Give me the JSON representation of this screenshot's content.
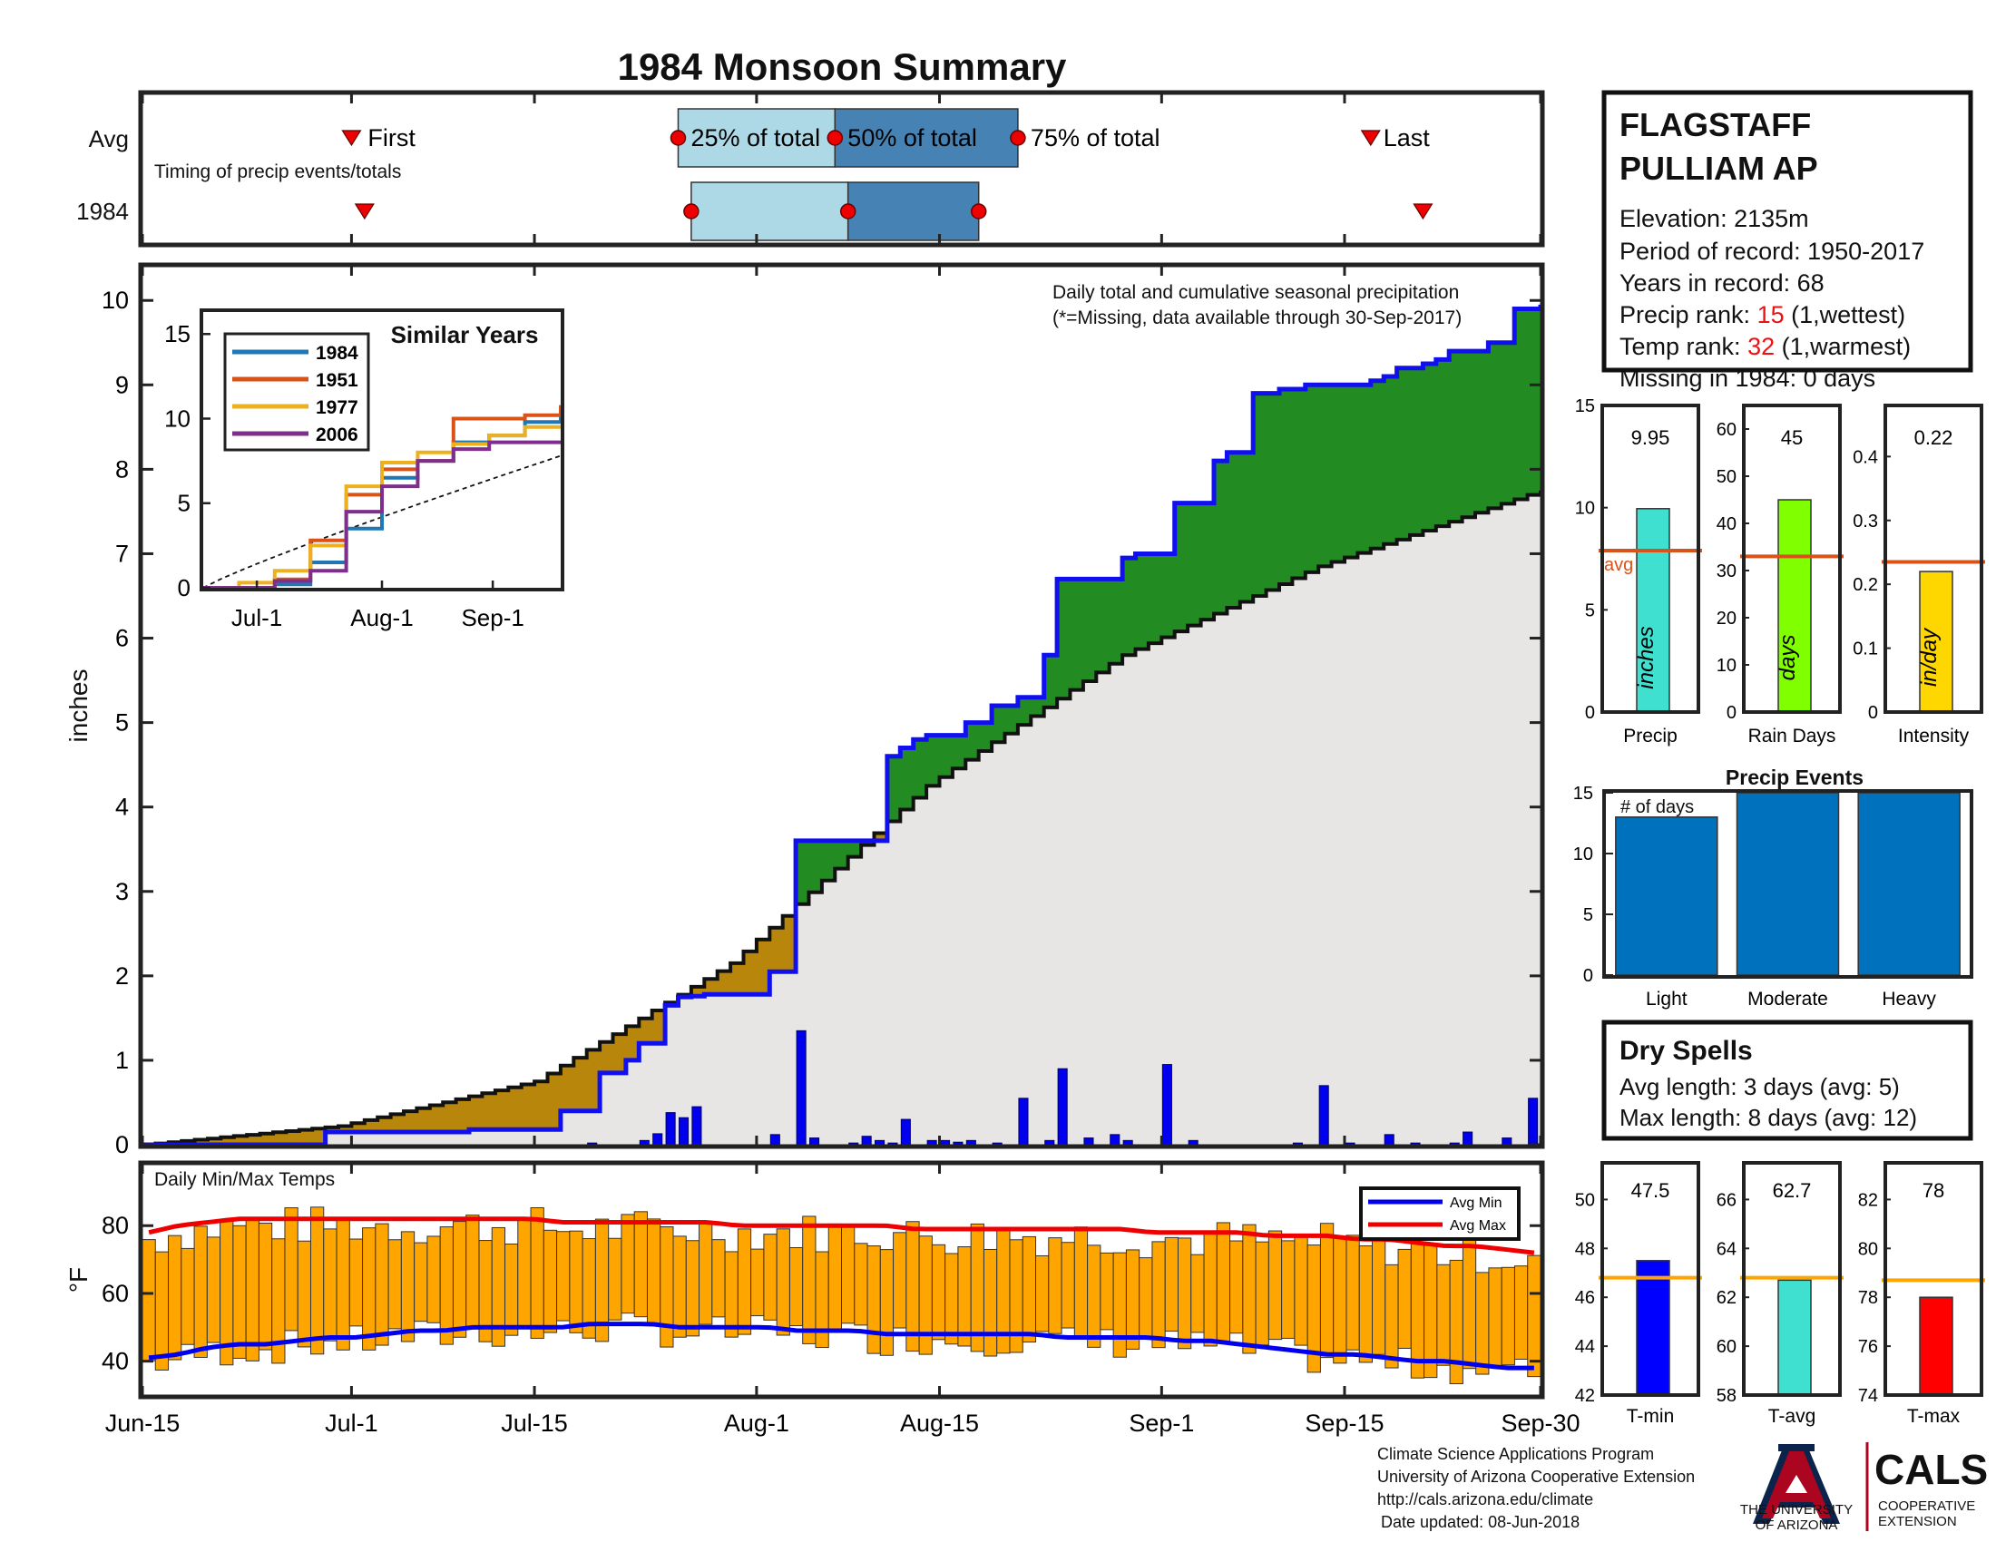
{
  "title": "1984 Monsoon Summary",
  "timing": {
    "row_labels": [
      "Avg",
      "1984"
    ],
    "first_label": "First",
    "last_label": "Last",
    "q25_label": "25% of total",
    "q50_label": "50% of total",
    "q75_label": "75% of total",
    "caption": "Timing of precip events/totals",
    "avg": {
      "first": 16,
      "q25": 41,
      "q50": 53,
      "q75": 67,
      "last": 94
    },
    "year": {
      "first": 17,
      "q25": 42,
      "q50": 54,
      "q75": 64,
      "last": 98
    }
  },
  "station": {
    "name_line1": "FLAGSTAFF",
    "name_line2": "PULLIAM AP",
    "elevation": "Elevation: 2135m",
    "period": "Period of record: 1950-2017",
    "years": "Years in record: 68",
    "precip_rank_prefix": "Precip rank: ",
    "precip_rank_value": "15",
    "precip_rank_suffix": " (1,wettest)",
    "temp_rank_prefix": "Temp rank: ",
    "temp_rank_value": "32",
    "temp_rank_suffix": " (1,warmest)",
    "missing": "Missing in 1984: 0 days"
  },
  "precip_panel": {
    "ylabel": "inches",
    "note_line1": "Daily total and cumulative seasonal precipitation",
    "note_line2": "(*=Missing, data available through 30-Sep-2017)"
  },
  "similar_years": {
    "title": "Similar Years",
    "legend": [
      "1984",
      "1951",
      "1977",
      "2006"
    ],
    "colors": [
      "#1f77b4",
      "#d95319",
      "#edb120",
      "#7e2f8e"
    ],
    "xticks": [
      "Jul-1",
      "Aug-1",
      "Sep-1"
    ],
    "yticks": [
      "0",
      "5",
      "10",
      "15"
    ]
  },
  "temp_panel": {
    "title": "Daily Min/Max Temps",
    "ylabel": "°F",
    "legend_min": "Avg Min",
    "legend_max": "Avg Max",
    "yticks": [
      "40",
      "60",
      "80"
    ]
  },
  "x_ticks": [
    "Jun-15",
    "Jul-1",
    "Jul-15",
    "Aug-1",
    "Aug-15",
    "Sep-1",
    "Sep-15",
    "Sep-30"
  ],
  "summary_bars": [
    {
      "label": "Precip",
      "value": 9.95,
      "value_label": "9.95",
      "avg": 7.9,
      "unit": "inches",
      "color": "#40e0d0",
      "ymax": 15,
      "ticks": [
        "0",
        "5",
        "10",
        "15"
      ]
    },
    {
      "label": "Rain Days",
      "value": 45,
      "value_label": "45",
      "avg": 33,
      "unit": "days",
      "color": "#7fff00",
      "ymax": 65,
      "ticks": [
        "0",
        "10",
        "20",
        "30",
        "40",
        "50",
        "60"
      ]
    },
    {
      "label": "Intensity",
      "value": 0.22,
      "value_label": "0.22",
      "avg": 0.235,
      "unit": "in/day",
      "color": "#ffd700",
      "ymax": 0.48,
      "ticks": [
        "0",
        "0.1",
        "0.2",
        "0.3",
        "0.4"
      ]
    }
  ],
  "avg_label": "avg",
  "events": {
    "title": "Precip Events",
    "ylabel": "# of days",
    "categories": [
      "Light",
      "Moderate",
      "Heavy"
    ],
    "values": [
      13,
      15,
      15
    ],
    "ticks": [
      "0",
      "5",
      "10",
      "15"
    ],
    "color": "#0072bd"
  },
  "dry_spells": {
    "title": "Dry Spells",
    "avg_length": "Avg length: 3 days (avg: 5)",
    "max_length": "Max length: 8 days (avg: 12)"
  },
  "temp_bars": [
    {
      "label": "T-min",
      "value": 47.5,
      "value_label": "47.5",
      "avg": 46.8,
      "color": "#0000ff",
      "ymin": 42,
      "ymax": 51.5,
      "ticks": [
        "42",
        "44",
        "46",
        "48",
        "50"
      ]
    },
    {
      "label": "T-avg",
      "value": 62.7,
      "value_label": "62.7",
      "avg": 62.8,
      "color": "#40e0d0",
      "ymin": 58,
      "ymax": 67.5,
      "ticks": [
        "58",
        "60",
        "62",
        "64",
        "66"
      ]
    },
    {
      "label": "T-max",
      "value": 78,
      "value_label": "78",
      "avg": 78.7,
      "color": "#ff0000",
      "ymin": 74,
      "ymax": 83.5,
      "ticks": [
        "74",
        "76",
        "78",
        "80",
        "82"
      ]
    }
  ],
  "footer": {
    "line1": "Climate Science Applications Program",
    "line2": "University of Arizona Cooperative Extension",
    "line3": "http://cals.arizona.edu/climate",
    "line4": "Date updated: 08-Jun-2018"
  },
  "logo": {
    "ua_line1": "THE UNIVERSITY",
    "ua_line2": "OF ARIZONA",
    "cals": "CALS",
    "coop1": "COOPERATIVE",
    "coop2": "EXTENSION"
  },
  "colors": {
    "title": "#ee1111",
    "green_fill": "#228b22",
    "gold_fill": "#b8860b",
    "gray_fill": "#e8e6e4",
    "cumulative_line": "#1010ee",
    "temp_bar": "#ffa500",
    "avg_line_orange": "#d95319",
    "dry_spell_text": "#8b4513",
    "timing_light": "#add8e6",
    "timing_dark": "#4682b4"
  },
  "chart_data": [
    {
      "type": "area",
      "title": "",
      "ylabel": "inches",
      "xlabel": "",
      "ylim": [
        0,
        10.4
      ],
      "x_range": [
        "Jun-15",
        "Sep-30"
      ],
      "series": [
        {
          "name": "",
          "day_index": [
            0,
            14,
            25,
            32,
            35,
            37,
            38,
            40,
            41,
            42,
            43,
            48,
            50,
            57,
            58,
            59,
            60,
            63,
            65,
            67,
            68,
            69,
            70,
            75,
            76,
            79,
            82,
            83,
            85,
            86,
            87,
            89,
            94,
            95,
            96,
            98,
            99,
            100,
            103,
            105,
            107
          ],
          "values": [
            0,
            0.15,
            0.18,
            0.4,
            0.85,
            1.0,
            1.2,
            1.65,
            1.75,
            1.76,
            1.78,
            2.05,
            3.6,
            4.6,
            4.7,
            4.8,
            4.85,
            5.0,
            5.2,
            5.3,
            5.3,
            5.8,
            6.7,
            6.95,
            7.0,
            7.6,
            8.1,
            8.2,
            8.9,
            8.9,
            8.95,
            9.0,
            9.05,
            9.1,
            9.2,
            9.25,
            9.3,
            9.4,
            9.5,
            9.9,
            9.95
          ]
        },
        {
          "name": "",
          "day_index": [
            0,
            15,
            30,
            45,
            60,
            75,
            90,
            107
          ],
          "values": [
            0,
            0.22,
            0.75,
            2.15,
            4.25,
            5.8,
            6.85,
            7.75
          ]
        }
      ],
      "daily_precip": {
        "day_index": [
          34,
          38,
          39,
          40,
          41,
          42,
          48,
          50,
          51,
          54,
          55,
          56,
          57,
          58,
          60,
          61,
          62,
          63,
          65,
          67,
          69,
          70,
          72,
          74,
          75,
          78,
          80,
          88,
          90,
          92,
          95,
          97,
          100,
          101,
          104,
          106
        ],
        "values": [
          0.02,
          0.05,
          0.13,
          0.38,
          0.32,
          0.45,
          0.12,
          1.35,
          0.08,
          0.02,
          0.1,
          0.05,
          0.02,
          0.3,
          0.05,
          0.05,
          0.03,
          0.05,
          0.02,
          0.55,
          0.05,
          0.9,
          0.08,
          0.12,
          0.05,
          0.95,
          0.05,
          0.02,
          0.7,
          0.02,
          0.12,
          0.02,
          0.02,
          0.15,
          0.08,
          0.55
        ]
      }
    },
    {
      "type": "line",
      "title": "Similar Years",
      "x_ticks": [
        "Jul-1",
        "Aug-1",
        "Sep-1"
      ],
      "ylim": [
        0,
        15
      ],
      "series": [
        {
          "name": "1984",
          "values": [
            0,
            0,
            0.2,
            1.5,
            3.5,
            6.5,
            7.5,
            8.6,
            9.0,
            9.8,
            10.3
          ]
        },
        {
          "name": "1951",
          "values": [
            0,
            0,
            0.5,
            2.8,
            5.5,
            7.0,
            7.5,
            10.0,
            10.0,
            10.2,
            10.8
          ]
        },
        {
          "name": "1977",
          "values": [
            0,
            0.3,
            1.0,
            2.5,
            6.0,
            7.4,
            8.0,
            8.5,
            9.0,
            9.5,
            9.6
          ]
        },
        {
          "name": "2006",
          "values": [
            0,
            0,
            0.4,
            1.0,
            4.5,
            6.0,
            7.5,
            8.2,
            8.6,
            8.6,
            8.6
          ]
        }
      ]
    },
    {
      "type": "bar",
      "title": "Daily Min/Max Temps",
      "ylabel": "°F",
      "ylim": [
        30,
        98
      ],
      "avg_min": [
        41,
        42,
        44,
        45,
        45,
        46,
        47,
        47,
        48,
        49,
        49,
        50,
        50,
        50,
        50,
        51,
        51,
        51,
        50,
        50,
        50,
        50,
        49,
        49,
        49,
        48,
        48,
        48,
        48,
        48,
        48,
        47,
        47,
        47,
        47,
        46,
        46,
        45,
        44,
        43,
        42,
        42,
        41,
        40,
        40,
        39,
        38,
        38
      ],
      "avg_max": [
        78,
        80,
        81,
        82,
        82,
        82,
        82,
        82,
        82,
        82,
        82,
        82,
        82,
        82,
        81,
        81,
        81,
        81,
        81,
        81,
        80,
        80,
        80,
        80,
        80,
        80,
        79,
        79,
        79,
        79,
        79,
        79,
        79,
        79,
        78,
        78,
        78,
        78,
        77,
        77,
        77,
        76,
        76,
        75,
        74,
        74,
        73,
        72
      ]
    },
    {
      "type": "bar",
      "title": "",
      "categories": [
        "Precip",
        "Rain Days",
        "Intensity"
      ],
      "values": [
        9.95,
        45,
        0.22
      ]
    },
    {
      "type": "bar",
      "title": "Precip Events",
      "ylabel": "# of days",
      "categories": [
        "Light",
        "Moderate",
        "Heavy"
      ],
      "values": [
        13,
        15,
        15
      ],
      "ylim": [
        0,
        15
      ]
    },
    {
      "type": "bar",
      "title": "",
      "categories": [
        "T-min",
        "T-avg",
        "T-max"
      ],
      "values": [
        47.5,
        62.7,
        78
      ]
    }
  ]
}
